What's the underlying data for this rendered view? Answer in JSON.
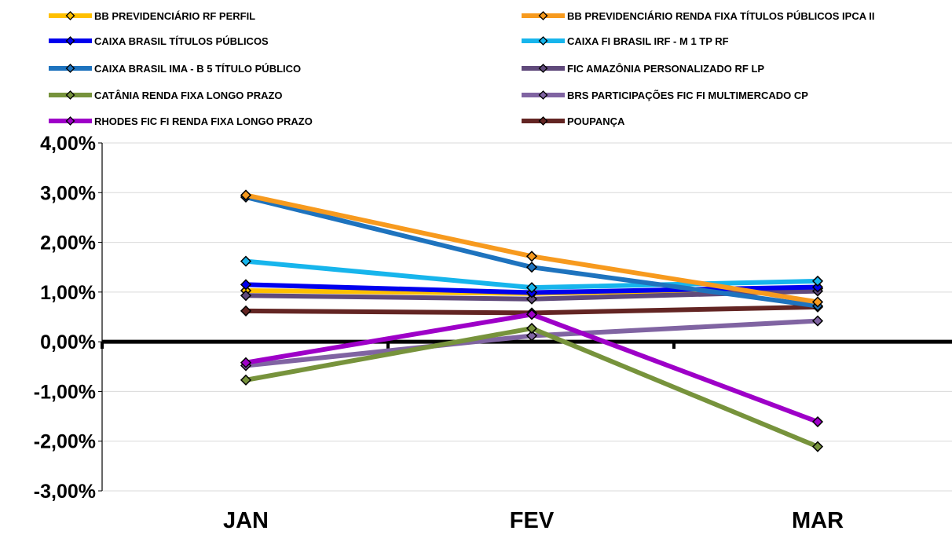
{
  "chart_data": {
    "type": "line",
    "categories": [
      "JAN",
      "FEV",
      "MAR"
    ],
    "ylim": [
      -3,
      4
    ],
    "yticks": [
      4,
      3,
      2,
      1,
      0,
      -1,
      -2,
      -3
    ],
    "ytick_labels": [
      "4,00%",
      "3,00%",
      "2,00%",
      "1,00%",
      "0,00%",
      "-1,00%",
      "-2,00%",
      "-3,00%"
    ],
    "grid": "horizontal",
    "legend_position": "top",
    "series": [
      {
        "name": "BB PREVIDENCIÁRIO RF PERFIL",
        "color": "#FFC000",
        "values": [
          1.03,
          0.97,
          1.07
        ]
      },
      {
        "name": "BB PREVIDENCIÁRIO RENDA FIXA TÍTULOS PÚBLICOS IPCA II",
        "color": "#F79A1E",
        "values": [
          2.95,
          1.72,
          0.8
        ]
      },
      {
        "name": "CAIXA BRASIL TÍTULOS PÚBLICOS",
        "color": "#0000EE",
        "values": [
          1.15,
          0.99,
          1.1
        ]
      },
      {
        "name": "CAIXA FI BRASIL IRF - M 1 TP RF",
        "color": "#17B5EC",
        "values": [
          1.62,
          1.09,
          1.22
        ]
      },
      {
        "name": "CAIXA BRASIL IMA - B 5 TÍTULO PÚBLICO",
        "color": "#1E73BE",
        "values": [
          2.91,
          1.5,
          0.72
        ]
      },
      {
        "name": "FIC AMAZÔNIA PERSONALIZADO RF LP",
        "color": "#604A7B",
        "values": [
          0.93,
          0.86,
          1.02
        ]
      },
      {
        "name": "CATÂNIA RENDA FIXA LONGO PRAZO",
        "color": "#77933C",
        "values": [
          -0.77,
          0.27,
          -2.11
        ]
      },
      {
        "name": "BRS PARTICIPAÇÕES FIC FI MULTIMERCADO CP",
        "color": "#8064A2",
        "values": [
          -0.48,
          0.12,
          0.42
        ]
      },
      {
        "name": "RHODES FIC FI RENDA FIXA LONGO PRAZO",
        "color": "#9E00C8",
        "values": [
          -0.42,
          0.55,
          -1.61
        ]
      },
      {
        "name": "POUPANÇA",
        "color": "#632523",
        "values": [
          0.62,
          0.58,
          0.7
        ]
      }
    ]
  }
}
